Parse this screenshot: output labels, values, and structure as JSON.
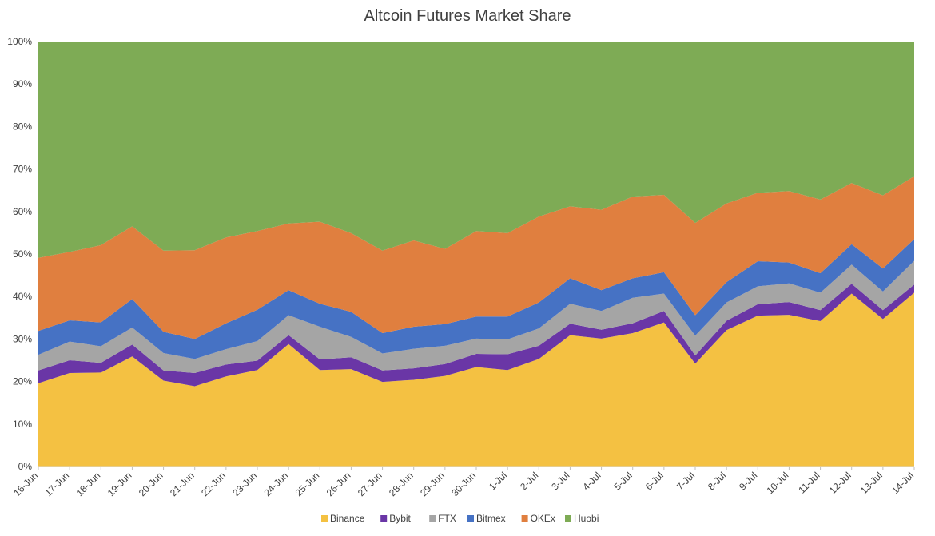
{
  "chart_data": {
    "type": "area",
    "stacked": true,
    "percent_stacked": true,
    "title": "Altcoin Futures Market Share",
    "xlabel": "",
    "ylabel": "",
    "ylim": [
      0,
      100
    ],
    "y_ticks": [
      "0%",
      "10%",
      "20%",
      "30%",
      "40%",
      "50%",
      "60%",
      "70%",
      "80%",
      "90%",
      "100%"
    ],
    "grid": false,
    "legend_position": "bottom",
    "categories": [
      "16-Jun",
      "17-Jun",
      "18-Jun",
      "19-Jun",
      "20-Jun",
      "21-Jun",
      "22-Jun",
      "23-Jun",
      "24-Jun",
      "25-Jun",
      "26-Jun",
      "27-Jun",
      "28-Jun",
      "29-Jun",
      "30-Jun",
      "1-Jul",
      "2-Jul",
      "3-Jul",
      "4-Jul",
      "5-Jul",
      "6-Jul",
      "7-Jul",
      "8-Jul",
      "9-Jul",
      "10-Jul",
      "11-Jul",
      "12-Jul",
      "13-Jul",
      "14-Jul"
    ],
    "series": [
      {
        "name": "Binance",
        "color": "#F4C142",
        "values": [
          19.6,
          22.0,
          22.1,
          25.9,
          20.2,
          18.9,
          21.2,
          22.7,
          28.8,
          22.7,
          22.9,
          19.9,
          20.4,
          21.3,
          23.4,
          22.7,
          25.3,
          30.9,
          30.1,
          31.4,
          33.9,
          24.2,
          32.1,
          35.5,
          35.7,
          34.2,
          40.7,
          34.7,
          40.9
        ]
      },
      {
        "name": "Bybit",
        "color": "#6A36A6",
        "values": [
          3.0,
          3.0,
          2.3,
          2.8,
          2.4,
          3.1,
          2.8,
          2.2,
          2.1,
          2.5,
          2.8,
          2.7,
          2.7,
          2.8,
          3.1,
          3.7,
          3.1,
          2.7,
          2.1,
          2.3,
          2.7,
          1.9,
          2.2,
          2.7,
          3.0,
          2.6,
          2.3,
          2.1,
          1.9
        ]
      },
      {
        "name": "FTX",
        "color": "#A5A5A5",
        "values": [
          3.7,
          4.4,
          3.9,
          4.0,
          4.1,
          3.3,
          3.6,
          4.6,
          4.7,
          7.7,
          4.8,
          4.0,
          4.6,
          4.3,
          3.6,
          3.5,
          4.1,
          4.7,
          4.4,
          6.0,
          4.1,
          4.7,
          4.3,
          4.2,
          4.4,
          4.1,
          4.5,
          4.4,
          5.6
        ]
      },
      {
        "name": "Bitmex",
        "color": "#4672C4",
        "values": [
          5.6,
          5.0,
          5.6,
          6.7,
          5.0,
          4.7,
          6.1,
          7.4,
          5.9,
          5.4,
          5.9,
          4.8,
          5.2,
          5.1,
          5.2,
          5.4,
          6.1,
          6.0,
          4.9,
          4.6,
          5.0,
          4.8,
          4.8,
          5.9,
          4.9,
          4.6,
          4.8,
          5.4,
          5.1
        ]
      },
      {
        "name": "OKEx",
        "color": "#E07F3F",
        "values": [
          17.2,
          16.1,
          18.2,
          17.1,
          19.1,
          20.9,
          20.2,
          18.5,
          15.7,
          19.3,
          18.5,
          19.4,
          20.3,
          17.7,
          20.1,
          19.6,
          20.2,
          16.9,
          18.9,
          19.2,
          18.2,
          21.7,
          18.5,
          16.1,
          16.8,
          17.3,
          14.4,
          17.2,
          14.8
        ]
      },
      {
        "name": "Huobi",
        "color": "#7EAB55",
        "values": [
          50.9,
          49.5,
          47.9,
          43.5,
          49.2,
          49.1,
          46.1,
          44.6,
          42.8,
          42.4,
          45.1,
          49.2,
          46.8,
          48.8,
          44.6,
          45.1,
          41.2,
          38.8,
          39.6,
          36.5,
          36.1,
          42.7,
          38.1,
          35.6,
          35.2,
          37.2,
          33.3,
          36.2,
          31.7
        ]
      }
    ]
  }
}
